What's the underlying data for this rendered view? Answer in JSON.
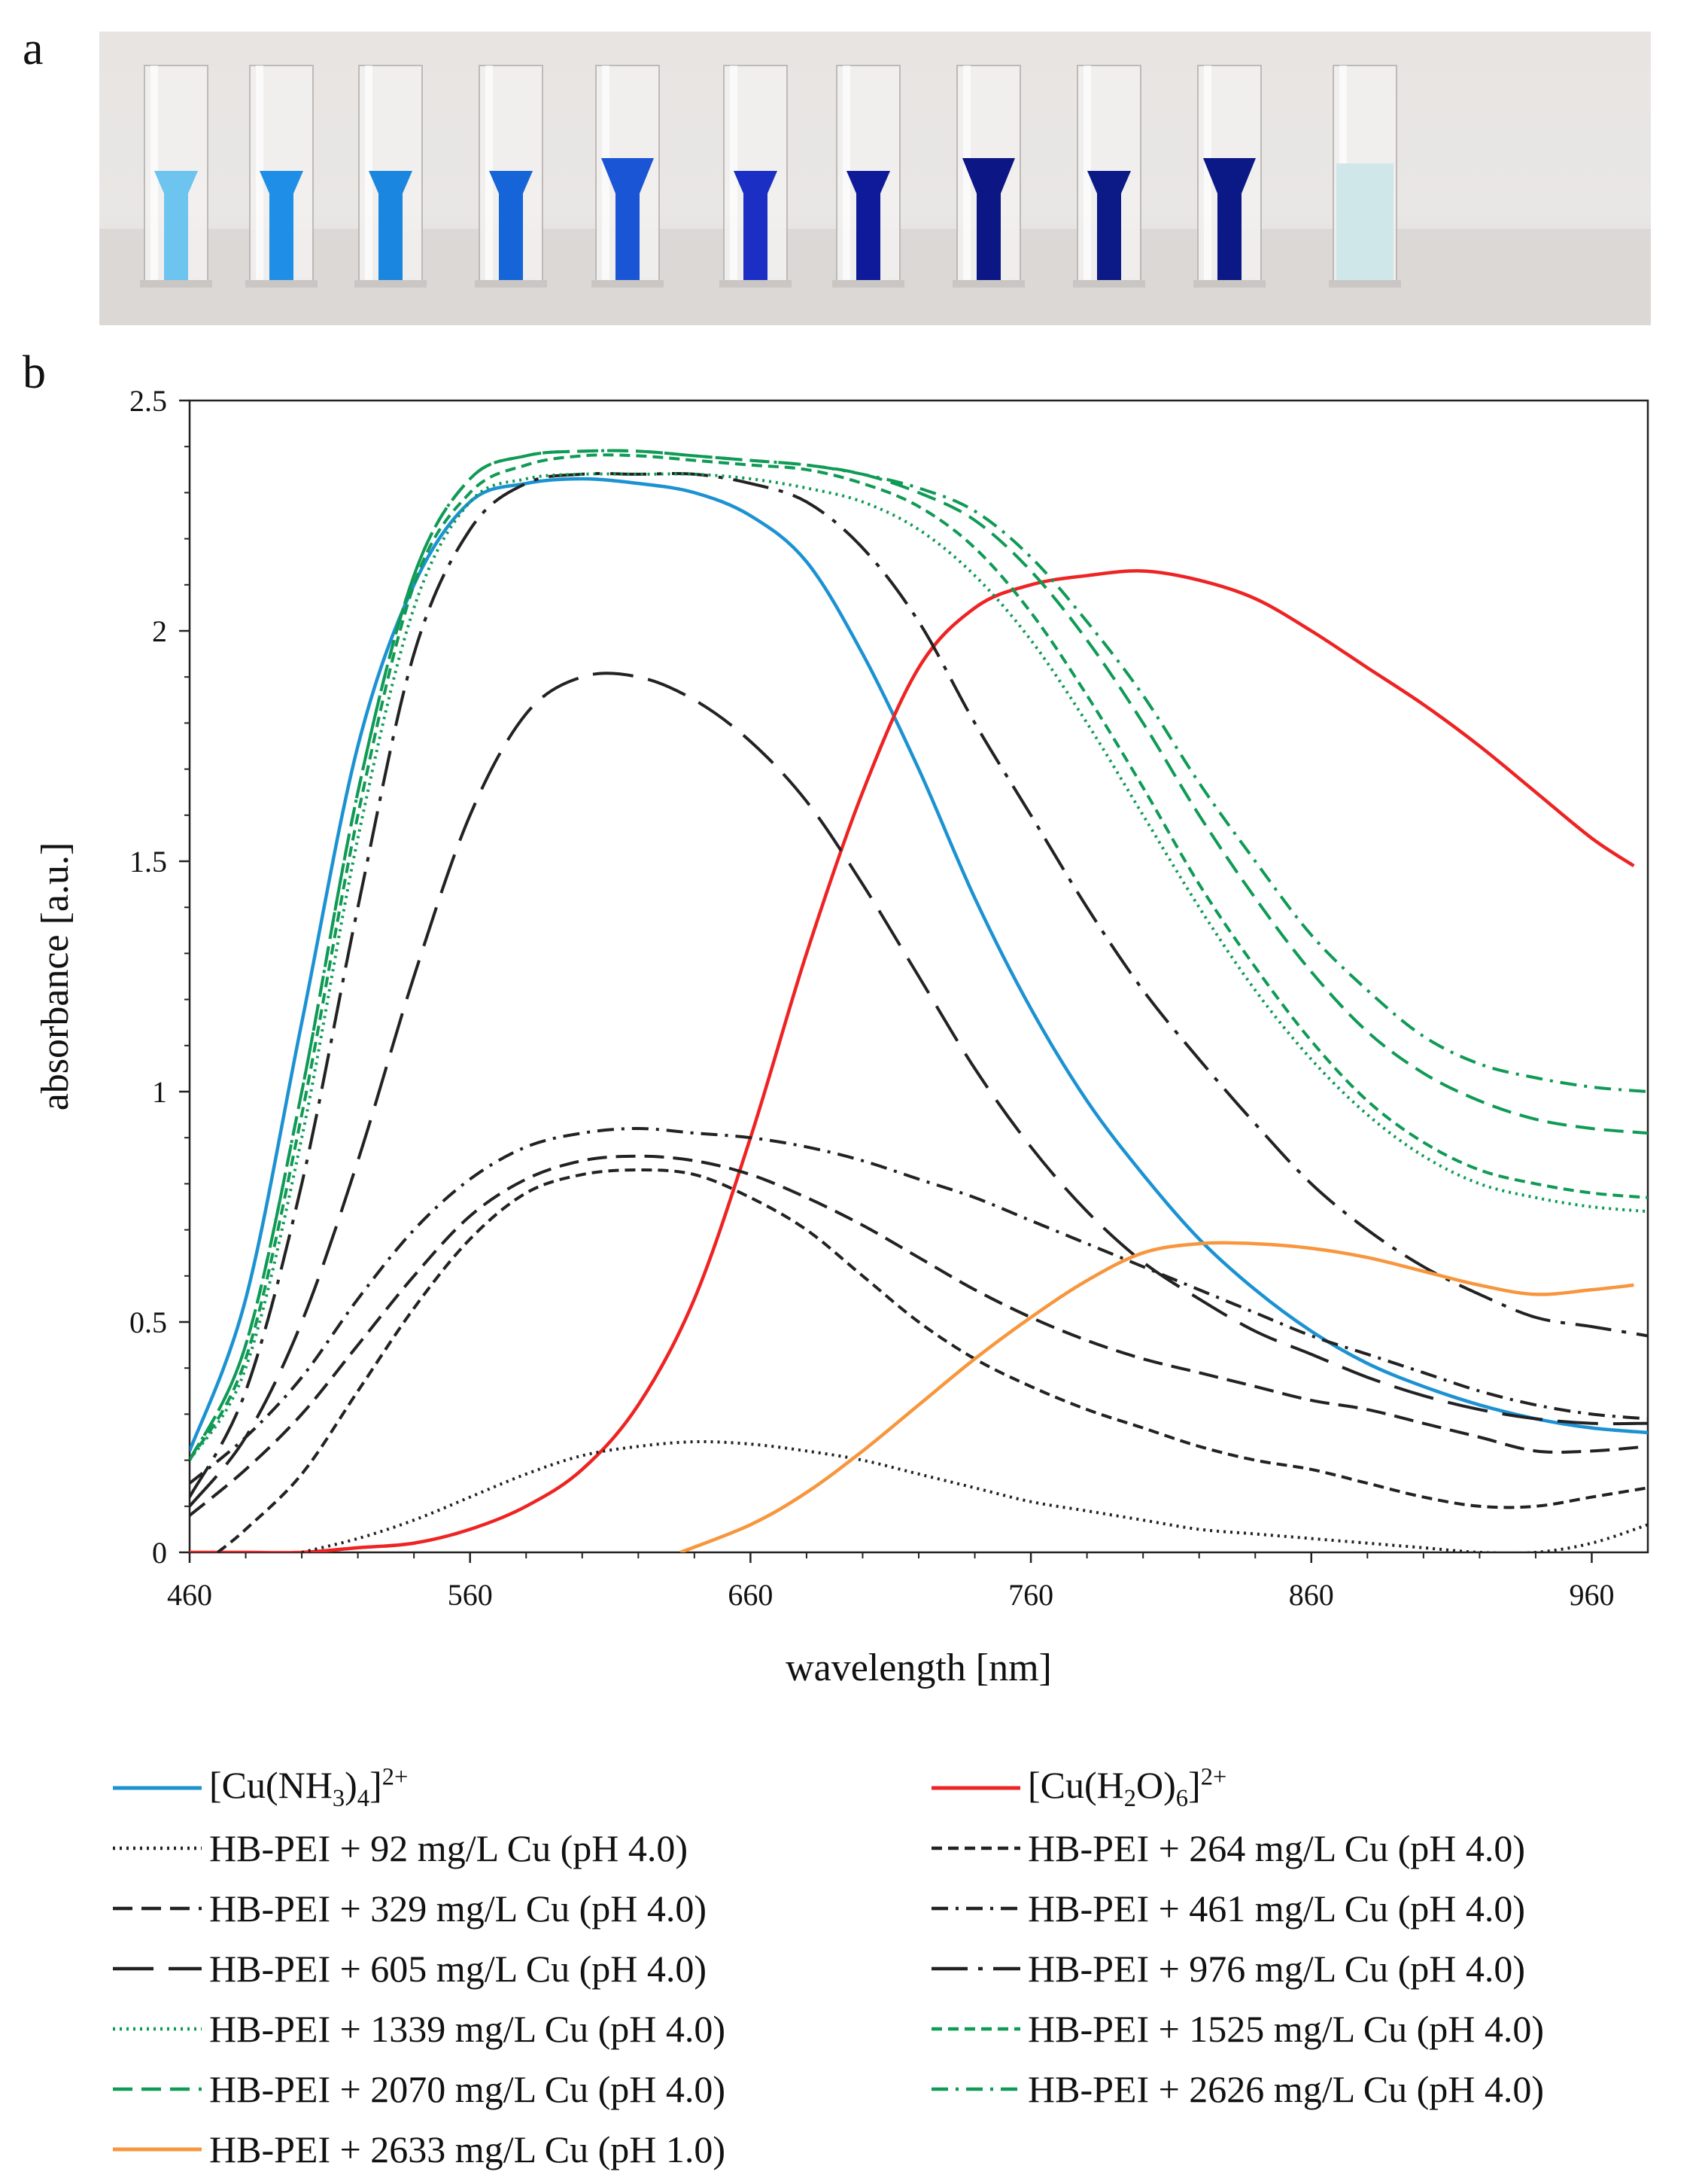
{
  "panels": {
    "a": "a",
    "b": "b"
  },
  "photo": {
    "cuvettes": [
      {
        "fill": "#6cc4ef",
        "shape": "narrow"
      },
      {
        "fill": "#1f8ee6",
        "shape": "narrow"
      },
      {
        "fill": "#1a86e0",
        "shape": "narrow"
      },
      {
        "fill": "#1565d8",
        "shape": "narrow"
      },
      {
        "fill": "#1a55d6",
        "shape": "wide"
      },
      {
        "fill": "#1b2fc4",
        "shape": "narrow"
      },
      {
        "fill": "#0f1a9a",
        "shape": "narrow"
      },
      {
        "fill": "#0c1684",
        "shape": "wide"
      },
      {
        "fill": "#0b1a86",
        "shape": "narrow"
      },
      {
        "fill": "#0a1985",
        "shape": "wide"
      },
      {
        "fill": "#cfe7e8",
        "shape": "full"
      }
    ]
  },
  "chart_data": {
    "type": "line",
    "xlabel": "wavelength [nm]",
    "ylabel": "absorbance [a.u.]",
    "xlim": [
      460,
      980
    ],
    "ylim": [
      0,
      2.5
    ],
    "xticks": [
      460,
      560,
      660,
      760,
      860,
      960
    ],
    "yticks": [
      0,
      0.5,
      1,
      1.5,
      2,
      2.5
    ],
    "ytick_labels": [
      "0",
      "0.5",
      "1",
      "1.5",
      "2",
      "2.5"
    ],
    "series": [
      {
        "name": "[Cu(NH3)4]2+",
        "label_pre": "[Cu(NH",
        "label_sub1": "3",
        "label_mid": ")",
        "label_sub2": "4",
        "label_post": "]",
        "label_sup": "2+",
        "color": "#1c92d2",
        "dash": "solid",
        "x": [
          460,
          480,
          500,
          520,
          540,
          560,
          580,
          600,
          620,
          640,
          660,
          680,
          700,
          720,
          740,
          760,
          780,
          800,
          820,
          840,
          860,
          880,
          900,
          920,
          940,
          960,
          980
        ],
        "y": [
          0.22,
          0.55,
          1.15,
          1.75,
          2.1,
          2.28,
          2.32,
          2.33,
          2.32,
          2.3,
          2.25,
          2.15,
          1.95,
          1.7,
          1.42,
          1.18,
          0.98,
          0.82,
          0.68,
          0.57,
          0.48,
          0.41,
          0.36,
          0.32,
          0.29,
          0.27,
          0.26
        ]
      },
      {
        "name": "[Cu(H2O)6]2+",
        "label_pre": "[Cu(H",
        "label_sub1": "2",
        "label_mid": "O)",
        "label_sub2": "6",
        "label_post": "]",
        "label_sup": "2+",
        "color": "#ee2323",
        "dash": "solid",
        "x": [
          460,
          480,
          500,
          520,
          540,
          560,
          580,
          600,
          620,
          640,
          660,
          680,
          700,
          720,
          740,
          760,
          780,
          800,
          820,
          840,
          860,
          880,
          900,
          920,
          940,
          960,
          975
        ],
        "y": [
          0,
          0,
          0,
          0.01,
          0.02,
          0.05,
          0.1,
          0.18,
          0.32,
          0.55,
          0.9,
          1.3,
          1.65,
          1.92,
          2.05,
          2.1,
          2.12,
          2.13,
          2.11,
          2.07,
          2.0,
          1.92,
          1.84,
          1.75,
          1.65,
          1.55,
          1.49
        ]
      },
      {
        "name": "HB-PEI + 92 mg/L Cu (pH 4.0)",
        "color": "#222222",
        "dash": "dotted",
        "x": [
          500,
          520,
          540,
          560,
          580,
          600,
          620,
          640,
          660,
          680,
          700,
          720,
          740,
          760,
          780,
          800,
          820,
          840,
          860,
          880,
          900,
          920,
          940,
          960,
          980
        ],
        "y": [
          0,
          0.03,
          0.07,
          0.12,
          0.17,
          0.21,
          0.23,
          0.24,
          0.235,
          0.22,
          0.2,
          0.17,
          0.14,
          0.11,
          0.09,
          0.07,
          0.05,
          0.04,
          0.03,
          0.02,
          0.01,
          0.0,
          0.0,
          0.02,
          0.06
        ]
      },
      {
        "name": "HB-PEI + 264 mg/L Cu (pH 4.0)",
        "color": "#222222",
        "dash": "short",
        "x": [
          470,
          480,
          500,
          520,
          540,
          560,
          580,
          600,
          620,
          640,
          660,
          680,
          700,
          720,
          740,
          760,
          780,
          800,
          820,
          840,
          860,
          880,
          900,
          920,
          940,
          960,
          980
        ],
        "y": [
          0,
          0.05,
          0.17,
          0.35,
          0.53,
          0.68,
          0.78,
          0.82,
          0.83,
          0.82,
          0.77,
          0.7,
          0.6,
          0.5,
          0.42,
          0.36,
          0.31,
          0.27,
          0.23,
          0.2,
          0.18,
          0.15,
          0.12,
          0.1,
          0.1,
          0.12,
          0.14
        ]
      },
      {
        "name": "HB-PEI + 329 mg/L Cu (pH 4.0)",
        "color": "#222222",
        "dash": "medium",
        "x": [
          460,
          480,
          500,
          520,
          540,
          560,
          580,
          600,
          620,
          640,
          660,
          680,
          700,
          720,
          740,
          760,
          780,
          800,
          820,
          840,
          860,
          880,
          900,
          920,
          940,
          960,
          980
        ],
        "y": [
          0.08,
          0.18,
          0.3,
          0.45,
          0.6,
          0.73,
          0.81,
          0.85,
          0.86,
          0.85,
          0.82,
          0.77,
          0.71,
          0.64,
          0.57,
          0.51,
          0.46,
          0.42,
          0.39,
          0.36,
          0.33,
          0.31,
          0.28,
          0.25,
          0.22,
          0.22,
          0.23
        ]
      },
      {
        "name": "HB-PEI + 461 mg/L Cu (pH 4.0)",
        "color": "#222222",
        "dash": "dashdot",
        "x": [
          460,
          480,
          500,
          520,
          540,
          560,
          580,
          600,
          620,
          640,
          660,
          680,
          700,
          720,
          740,
          760,
          780,
          800,
          820,
          840,
          860,
          880,
          900,
          920,
          940,
          960,
          980
        ],
        "y": [
          0.15,
          0.25,
          0.38,
          0.55,
          0.7,
          0.81,
          0.88,
          0.91,
          0.92,
          0.91,
          0.9,
          0.88,
          0.85,
          0.81,
          0.77,
          0.72,
          0.67,
          0.62,
          0.57,
          0.52,
          0.47,
          0.43,
          0.39,
          0.35,
          0.32,
          0.3,
          0.29
        ]
      },
      {
        "name": "HB-PEI + 605 mg/L Cu (pH 4.0)",
        "color": "#222222",
        "dash": "long",
        "x": [
          460,
          480,
          500,
          520,
          540,
          560,
          580,
          600,
          620,
          640,
          660,
          680,
          700,
          720,
          740,
          760,
          780,
          800,
          820,
          840,
          860,
          880,
          900,
          920,
          940,
          960,
          980
        ],
        "y": [
          0.1,
          0.25,
          0.5,
          0.85,
          1.25,
          1.6,
          1.82,
          1.9,
          1.9,
          1.85,
          1.76,
          1.63,
          1.45,
          1.25,
          1.05,
          0.88,
          0.74,
          0.63,
          0.55,
          0.48,
          0.43,
          0.38,
          0.34,
          0.31,
          0.29,
          0.28,
          0.28
        ]
      },
      {
        "name": "HB-PEI + 976 mg/L Cu (pH 4.0)",
        "color": "#222222",
        "dash": "longdashdot",
        "x": [
          460,
          480,
          500,
          520,
          540,
          560,
          580,
          600,
          620,
          640,
          660,
          680,
          700,
          720,
          740,
          760,
          780,
          800,
          820,
          840,
          860,
          880,
          900,
          920,
          940,
          960,
          980
        ],
        "y": [
          0.12,
          0.35,
          0.8,
          1.4,
          1.95,
          2.22,
          2.32,
          2.34,
          2.34,
          2.34,
          2.32,
          2.28,
          2.18,
          2.02,
          1.8,
          1.6,
          1.4,
          1.22,
          1.07,
          0.93,
          0.8,
          0.7,
          0.62,
          0.56,
          0.51,
          0.49,
          0.47
        ]
      },
      {
        "name": "HB-PEI + 1339 mg/L Cu (pH 4.0)",
        "color": "#0f9a55",
        "dash": "dotted",
        "x": [
          460,
          480,
          500,
          520,
          540,
          560,
          580,
          600,
          620,
          640,
          660,
          680,
          700,
          720,
          740,
          760,
          780,
          800,
          820,
          840,
          860,
          880,
          900,
          920,
          940,
          960,
          980
        ],
        "y": [
          0.2,
          0.4,
          0.9,
          1.55,
          2.05,
          2.28,
          2.33,
          2.34,
          2.34,
          2.34,
          2.33,
          2.31,
          2.28,
          2.22,
          2.12,
          1.98,
          1.8,
          1.6,
          1.4,
          1.22,
          1.07,
          0.95,
          0.86,
          0.8,
          0.77,
          0.75,
          0.74
        ]
      },
      {
        "name": "HB-PEI + 1525 mg/L Cu (pH 4.0)",
        "color": "#0f9a55",
        "dash": "short",
        "x": [
          460,
          480,
          500,
          520,
          540,
          560,
          580,
          600,
          620,
          640,
          660,
          680,
          700,
          720,
          740,
          760,
          780,
          800,
          820,
          840,
          860,
          880,
          900,
          920,
          940,
          960,
          980
        ],
        "y": [
          0.2,
          0.42,
          0.95,
          1.6,
          2.1,
          2.3,
          2.36,
          2.38,
          2.38,
          2.37,
          2.36,
          2.35,
          2.32,
          2.27,
          2.18,
          2.04,
          1.86,
          1.66,
          1.45,
          1.27,
          1.11,
          0.98,
          0.89,
          0.83,
          0.8,
          0.78,
          0.77
        ]
      },
      {
        "name": "HB-PEI + 2070 mg/L Cu (pH 4.0)",
        "color": "#0f9a55",
        "dash": "medium",
        "x": [
          460,
          480,
          500,
          520,
          540,
          560,
          580,
          600,
          620,
          640,
          660,
          680,
          700,
          720,
          740,
          760,
          780,
          800,
          820,
          840,
          860,
          880,
          900,
          920,
          940,
          960,
          980
        ],
        "y": [
          0.2,
          0.45,
          1.0,
          1.65,
          2.12,
          2.33,
          2.38,
          2.39,
          2.39,
          2.38,
          2.37,
          2.36,
          2.34,
          2.3,
          2.24,
          2.13,
          1.98,
          1.8,
          1.6,
          1.42,
          1.26,
          1.13,
          1.04,
          0.98,
          0.94,
          0.92,
          0.91
        ]
      },
      {
        "name": "HB-PEI + 2626 mg/L Cu (pH 4.0)",
        "color": "#0f9a55",
        "dash": "dashdot",
        "x": [
          460,
          480,
          500,
          520,
          540,
          560,
          580,
          600,
          620,
          640,
          660,
          680,
          700,
          720,
          740,
          760,
          780,
          800,
          820,
          840,
          860,
          880,
          900,
          920,
          940,
          960,
          980
        ],
        "y": [
          0.2,
          0.45,
          1.0,
          1.65,
          2.12,
          2.33,
          2.38,
          2.39,
          2.39,
          2.38,
          2.37,
          2.36,
          2.34,
          2.31,
          2.26,
          2.16,
          2.02,
          1.86,
          1.67,
          1.5,
          1.34,
          1.22,
          1.12,
          1.06,
          1.03,
          1.01,
          1.0
        ]
      },
      {
        "name": "HB-PEI + 2633 mg/L Cu (pH 1.0)",
        "color": "#f7963c",
        "dash": "solid",
        "x": [
          635,
          660,
          680,
          700,
          720,
          740,
          760,
          780,
          800,
          820,
          840,
          860,
          880,
          900,
          920,
          940,
          960,
          975
        ],
        "y": [
          0,
          0.06,
          0.13,
          0.22,
          0.32,
          0.42,
          0.51,
          0.59,
          0.65,
          0.67,
          0.67,
          0.66,
          0.64,
          0.61,
          0.58,
          0.56,
          0.57,
          0.58
        ]
      }
    ],
    "legend_order": [
      0,
      1,
      2,
      3,
      4,
      5,
      6,
      7,
      8,
      9,
      10,
      11,
      12
    ],
    "legend_placement": "below, two columns"
  }
}
